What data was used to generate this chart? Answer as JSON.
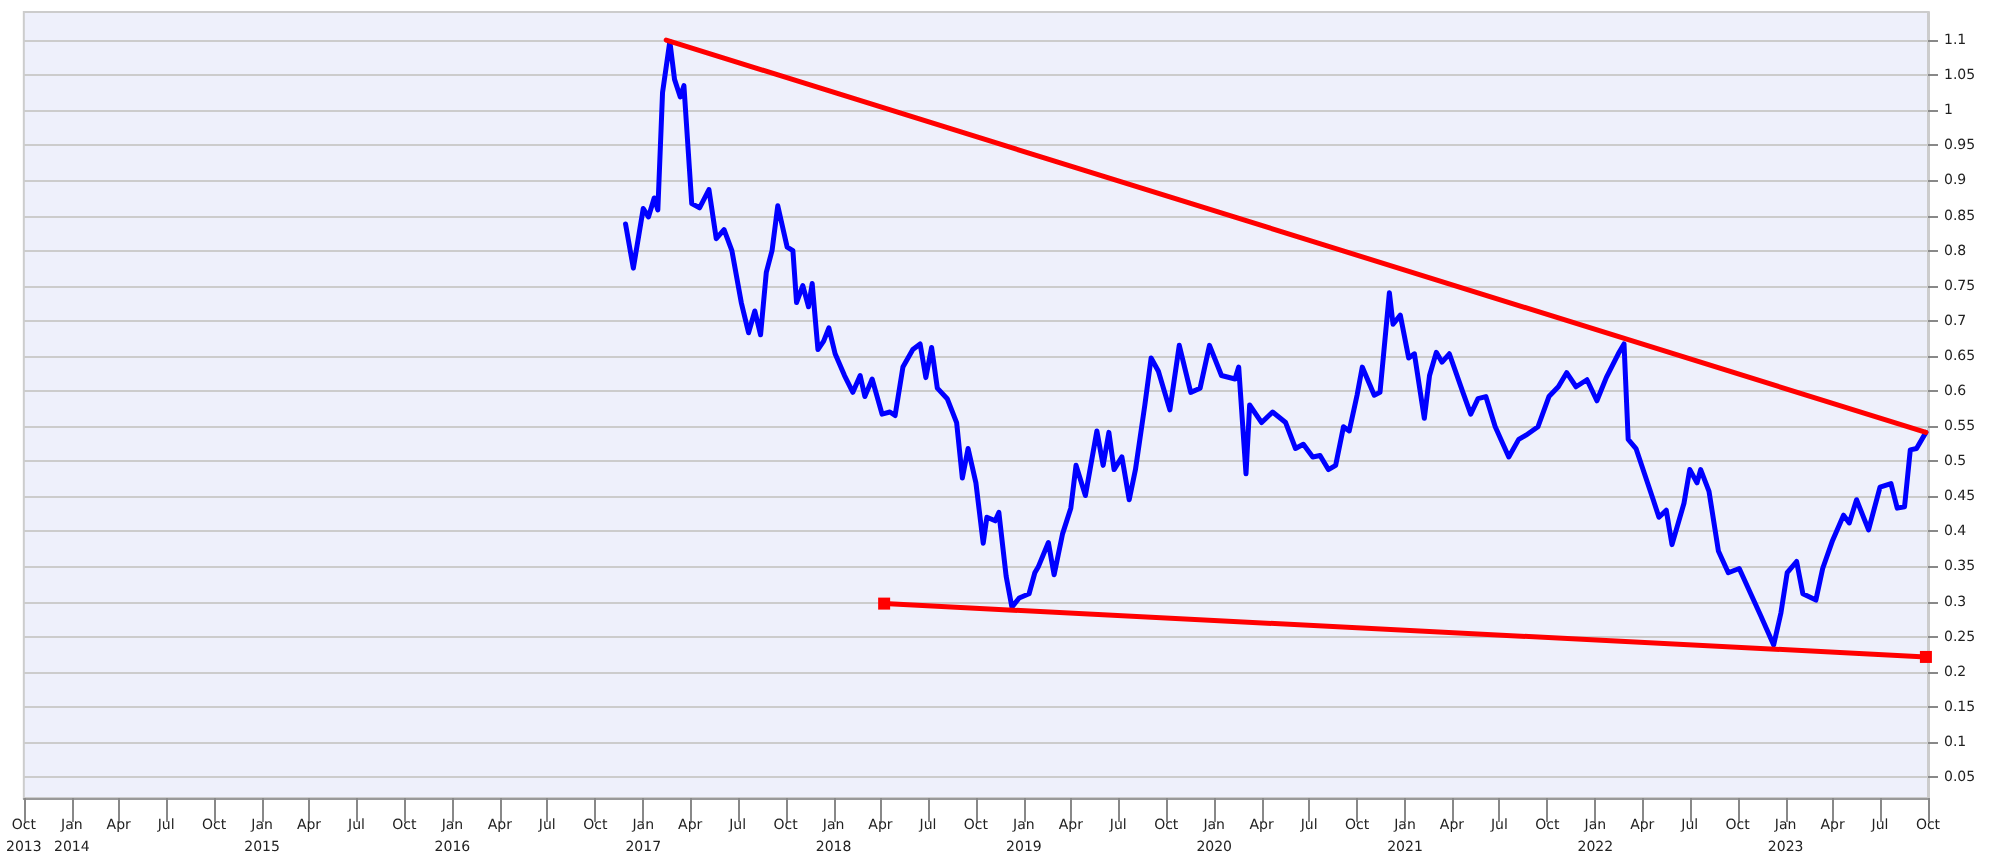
{
  "chart_data": {
    "type": "line",
    "xlim": [
      "2013-10-01",
      "2023-10-01"
    ],
    "xticks": [
      {
        "value": "2013-10-01",
        "label": "Oct\n2013"
      },
      {
        "value": "2014-01-01",
        "label": "Jan\n2014"
      },
      {
        "value": "2014-04-01",
        "label": "Apr"
      },
      {
        "value": "2014-07-01",
        "label": "Jul"
      },
      {
        "value": "2014-10-01",
        "label": "Oct"
      },
      {
        "value": "2015-01-01",
        "label": "Jan\n2015"
      },
      {
        "value": "2015-04-01",
        "label": "Apr"
      },
      {
        "value": "2015-07-01",
        "label": "Jul"
      },
      {
        "value": "2015-10-01",
        "label": "Oct"
      },
      {
        "value": "2016-01-01",
        "label": "Jan\n2016"
      },
      {
        "value": "2016-04-01",
        "label": "Apr"
      },
      {
        "value": "2016-07-01",
        "label": "Jul"
      },
      {
        "value": "2016-10-01",
        "label": "Oct"
      },
      {
        "value": "2017-01-01",
        "label": "Jan\n2017"
      },
      {
        "value": "2017-04-01",
        "label": "Apr"
      },
      {
        "value": "2017-07-01",
        "label": "Jul"
      },
      {
        "value": "2017-10-01",
        "label": "Oct"
      },
      {
        "value": "2018-01-01",
        "label": "Jan\n2018"
      },
      {
        "value": "2018-04-01",
        "label": "Apr"
      },
      {
        "value": "2018-07-01",
        "label": "Jul"
      },
      {
        "value": "2018-10-01",
        "label": "Oct"
      },
      {
        "value": "2019-01-01",
        "label": "Jan\n2019"
      },
      {
        "value": "2019-04-01",
        "label": "Apr"
      },
      {
        "value": "2019-07-01",
        "label": "Jul"
      },
      {
        "value": "2019-10-01",
        "label": "Oct"
      },
      {
        "value": "2020-01-01",
        "label": "Jan\n2020"
      },
      {
        "value": "2020-04-01",
        "label": "Apr"
      },
      {
        "value": "2020-07-01",
        "label": "Jul"
      },
      {
        "value": "2020-10-01",
        "label": "Oct"
      },
      {
        "value": "2021-01-01",
        "label": "Jan\n2021"
      },
      {
        "value": "2021-04-01",
        "label": "Apr"
      },
      {
        "value": "2021-07-01",
        "label": "Jul"
      },
      {
        "value": "2021-10-01",
        "label": "Oct"
      },
      {
        "value": "2022-01-01",
        "label": "Jan\n2022"
      },
      {
        "value": "2022-04-01",
        "label": "Apr"
      },
      {
        "value": "2022-07-01",
        "label": "Jul"
      },
      {
        "value": "2022-10-01",
        "label": "Oct"
      },
      {
        "value": "2023-01-01",
        "label": "Jan\n2023"
      },
      {
        "value": "2023-04-01",
        "label": "Apr"
      },
      {
        "value": "2023-07-01",
        "label": "Jul"
      },
      {
        "value": "2023-10-01",
        "label": "Oct"
      }
    ],
    "ylim": [
      0.02,
      1.14
    ],
    "yticks": [
      0.05,
      0.1,
      0.15,
      0.2,
      0.25,
      0.3,
      0.35,
      0.4,
      0.45,
      0.5,
      0.55,
      0.6,
      0.65,
      0.7,
      0.75,
      0.8,
      0.85,
      0.9,
      0.95,
      1,
      1.05,
      1.1
    ],
    "grid": "y",
    "line_style": "solid",
    "series": [
      {
        "color": "#0000ff",
        "marker": "none",
        "x": [
          "2016-11-28",
          "2016-12-13",
          "2017-01-01",
          "2017-01-11",
          "2017-01-22",
          "2017-01-29",
          "2017-02-07",
          "2017-02-21",
          "2017-03-02",
          "2017-03-13",
          "2017-03-20",
          "2017-04-04",
          "2017-04-19",
          "2017-05-07",
          "2017-05-21",
          "2017-06-05",
          "2017-06-20",
          "2017-07-08",
          "2017-07-22",
          "2017-08-03",
          "2017-08-14",
          "2017-08-25",
          "2017-09-05",
          "2017-09-16",
          "2017-10-04",
          "2017-10-15",
          "2017-10-22",
          "2017-11-03",
          "2017-11-14",
          "2017-11-21",
          "2017-12-02",
          "2017-12-13",
          "2017-12-23",
          "2018-01-04",
          "2018-01-22",
          "2018-02-07",
          "2018-02-21",
          "2018-03-02",
          "2018-03-16",
          "2018-04-04",
          "2018-04-19",
          "2018-04-29",
          "2018-05-14",
          "2018-06-02",
          "2018-06-16",
          "2018-06-27",
          "2018-07-08",
          "2018-07-19",
          "2018-08-07",
          "2018-08-25",
          "2018-09-05",
          "2018-09-16",
          "2018-10-01",
          "2018-10-15",
          "2018-10-22",
          "2018-11-07",
          "2018-11-14",
          "2018-11-28",
          "2018-12-09",
          "2018-12-23",
          "2019-01-11",
          "2019-01-22",
          "2019-01-29",
          "2019-02-17",
          "2019-02-28",
          "2019-03-16",
          "2019-04-01",
          "2019-04-11",
          "2019-04-29",
          "2019-05-21",
          "2019-06-02",
          "2019-06-13",
          "2019-06-23",
          "2019-07-08",
          "2019-07-22",
          "2019-08-03",
          "2019-08-21",
          "2019-09-02",
          "2019-09-16",
          "2019-10-08",
          "2019-10-26",
          "2019-11-17",
          "2019-12-05",
          "2019-12-23",
          "2020-01-15",
          "2020-02-10",
          "2020-02-17",
          "2020-03-02",
          "2020-03-09",
          "2020-04-01",
          "2020-04-22",
          "2020-05-17",
          "2020-06-05",
          "2020-06-20",
          "2020-07-08",
          "2020-07-22",
          "2020-08-07",
          "2020-08-21",
          "2020-09-05",
          "2020-09-16",
          "2020-10-01",
          "2020-10-11",
          "2020-11-03",
          "2020-11-14",
          "2020-12-02",
          "2020-12-09",
          "2020-12-23",
          "2021-01-08",
          "2021-01-19",
          "2021-02-07",
          "2021-02-17",
          "2021-03-02",
          "2021-03-13",
          "2021-03-27",
          "2021-04-22",
          "2021-05-07",
          "2021-05-21",
          "2021-06-05",
          "2021-06-23",
          "2021-07-19",
          "2021-08-07",
          "2021-08-21",
          "2021-09-13",
          "2021-10-04",
          "2021-10-22",
          "2021-11-07",
          "2021-11-25",
          "2021-12-16",
          "2022-01-04",
          "2022-01-22",
          "2022-02-14",
          "2022-02-25",
          "2022-03-05",
          "2022-03-20",
          "2022-04-08",
          "2022-04-22",
          "2022-05-03",
          "2022-05-17",
          "2022-05-28",
          "2022-06-20",
          "2022-07-01",
          "2022-07-15",
          "2022-07-22",
          "2022-08-07",
          "2022-08-25",
          "2022-09-13",
          "2022-10-04",
          "2022-10-26",
          "2022-11-14",
          "2022-12-09",
          "2022-12-23",
          "2023-01-04",
          "2023-01-22",
          "2023-02-03",
          "2023-02-28",
          "2023-03-13",
          "2023-04-01",
          "2023-04-22",
          "2023-05-03",
          "2023-05-17",
          "2023-06-09",
          "2023-07-01",
          "2023-07-22",
          "2023-08-03",
          "2023-08-17",
          "2023-08-28",
          "2023-09-09",
          "2023-09-27"
        ],
        "values": [
          0.838,
          0.775,
          0.86,
          0.848,
          0.875,
          0.858,
          1.025,
          1.098,
          1.044,
          1.019,
          1.035,
          0.867,
          0.861,
          0.887,
          0.817,
          0.83,
          0.8,
          0.726,
          0.683,
          0.714,
          0.68,
          0.769,
          0.8,
          0.864,
          0.805,
          0.8,
          0.726,
          0.75,
          0.72,
          0.753,
          0.659,
          0.671,
          0.69,
          0.653,
          0.622,
          0.598,
          0.622,
          0.592,
          0.617,
          0.567,
          0.57,
          0.565,
          0.634,
          0.659,
          0.667,
          0.619,
          0.662,
          0.604,
          0.589,
          0.555,
          0.476,
          0.518,
          0.469,
          0.383,
          0.42,
          0.415,
          0.427,
          0.336,
          0.292,
          0.305,
          0.311,
          0.341,
          0.35,
          0.384,
          0.338,
          0.396,
          0.433,
          0.494,
          0.451,
          0.543,
          0.494,
          0.541,
          0.488,
          0.506,
          0.445,
          0.488,
          0.58,
          0.647,
          0.628,
          0.573,
          0.665,
          0.598,
          0.604,
          0.665,
          0.622,
          0.617,
          0.634,
          0.482,
          0.58,
          0.555,
          0.57,
          0.555,
          0.518,
          0.524,
          0.506,
          0.508,
          0.488,
          0.494,
          0.549,
          0.543,
          0.594,
          0.634,
          0.594,
          0.598,
          0.74,
          0.695,
          0.708,
          0.647,
          0.653,
          0.561,
          0.622,
          0.655,
          0.641,
          0.653,
          0.598,
          0.567,
          0.589,
          0.592,
          0.549,
          0.506,
          0.531,
          0.537,
          0.549,
          0.592,
          0.606,
          0.626,
          0.606,
          0.616,
          0.586,
          0.619,
          0.653,
          0.667,
          0.531,
          0.518,
          0.476,
          0.445,
          0.42,
          0.43,
          0.381,
          0.44,
          0.488,
          0.469,
          0.488,
          0.457,
          0.372,
          0.341,
          0.347,
          0.311,
          0.28,
          0.238,
          0.284,
          0.341,
          0.357,
          0.311,
          0.302,
          0.347,
          0.387,
          0.423,
          0.412,
          0.445,
          0.402,
          0.463,
          0.468,
          0.433,
          0.435,
          0.516,
          0.518,
          0.541
        ]
      },
      {
        "color": "#ff0000",
        "marker": "none",
        "x": [
          "2017-02-14",
          "2023-09-27"
        ],
        "values": [
          1.1,
          0.541
        ]
      },
      {
        "color": "#ff0000",
        "marker": "square",
        "x": [
          "2018-04-08",
          "2023-09-27"
        ],
        "values": [
          0.297,
          0.221
        ]
      }
    ]
  }
}
